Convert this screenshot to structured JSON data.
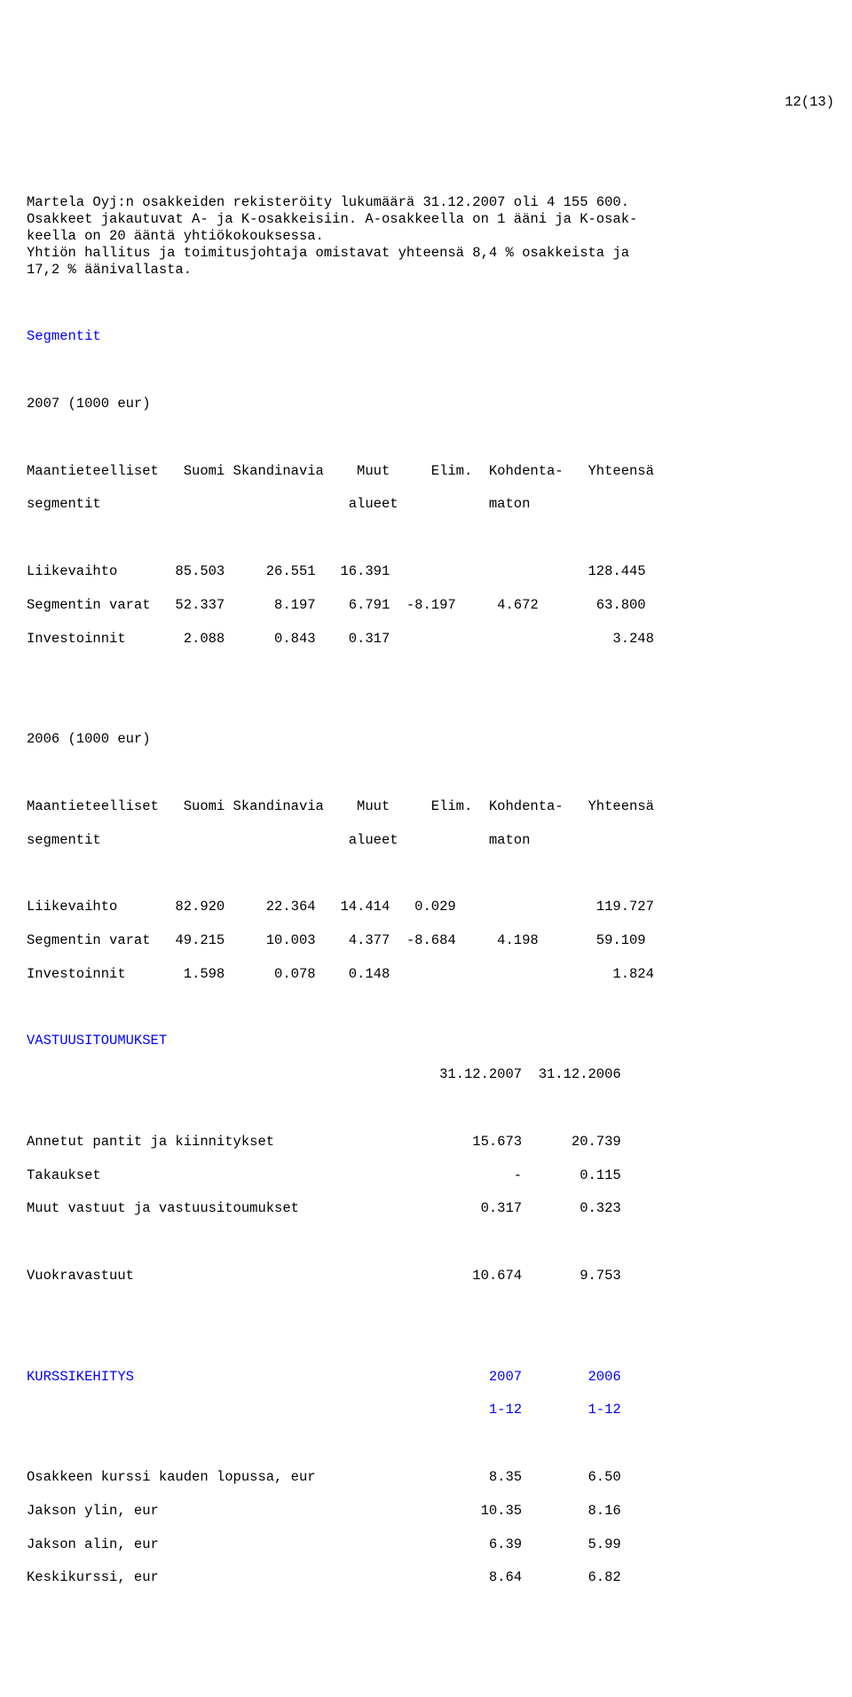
{
  "pagenum": "12(13)",
  "para1": "Martela Oyj:n osakkeiden rekisteröity lukumäärä 31.12.2007 oli 4 155 600.\nOsakkeet jakautuvat A- ja K-osakkeisiin. A-osakkeella on 1 ääni ja K-osak-\nkeella on 20 ääntä yhtiökokouksessa.\nYhtiön hallitus ja toimitusjohtaja omistavat yhteensä 8,4 % osakkeista ja\n17,2 % äänivallasta.",
  "seg_title": "Segmentit",
  "y2007": "2007 (1000 eur)",
  "hdr1": "Maantieteelliset   Suomi Skandinavia    Muut     Elim.  Kohdenta-   Yhteensä",
  "hdr2": "segmentit                              alueet           maton",
  "t07_r1": "Liikevaihto       85.503     26.551   16.391                        128.445",
  "t07_r2": "Segmentin varat   52.337      8.197    6.791  -8.197     4.672       63.800",
  "t07_r3": "Investoinnit       2.088      0.843    0.317                           3.248",
  "y2006": "2006 (1000 eur)",
  "t06_r1": "Liikevaihto       82.920     22.364   14.414   0.029                 119.727",
  "t06_r2": "Segmentin varat   49.215     10.003    4.377  -8.684     4.198       59.109",
  "t06_r3": "Investoinnit       1.598      0.078    0.148                           1.824",
  "vastuu_title": "VASTUUSITOUMUKSET",
  "vastuu_dates": "                                                  31.12.2007  31.12.2006",
  "v_r1": "Annetut pantit ja kiinnitykset                        15.673      20.739",
  "v_r2": "Takaukset                                                  -       0.115",
  "v_r3": "Muut vastuut ja vastuusitoumukset                      0.317       0.323",
  "v_r4": "Vuokravastuut                                         10.674       9.753",
  "kurssi_h1": "KURSSIKEHITYS                                           2007        2006",
  "kurssi_h2": "                                                        1-12        1-12",
  "k_r1": "Osakkeen kurssi kauden lopussa, eur                     8.35        6.50",
  "k_r2": "Jakson ylin, eur                                       10.35        8.16",
  "k_r3": "Jakson alin, eur                                        6.39        5.99",
  "k_r4": "Keskikurssi, eur                                        8.64        6.82"
}
